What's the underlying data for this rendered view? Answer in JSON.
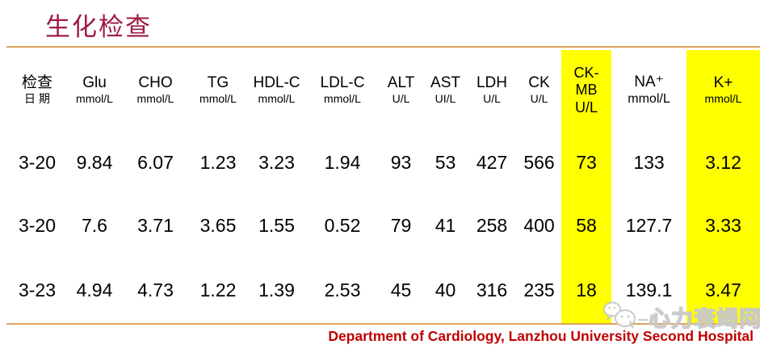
{
  "slide": {
    "title": "生化检查",
    "accent_colors": {
      "title": "#9E1B42",
      "divider": "#DEA35C",
      "highlight": "#FFFF00",
      "footer_text": "#C00000",
      "watermark": "#C9C9C9"
    }
  },
  "table": {
    "columns": [
      {
        "id": "date",
        "line1": "检查",
        "line2": "日 期",
        "highlight": false
      },
      {
        "id": "glu",
        "line1": "Glu",
        "line2": "mmol/L",
        "highlight": false
      },
      {
        "id": "cho",
        "line1": "CHO",
        "line2": "mmol/L",
        "highlight": false,
        "bold": true
      },
      {
        "id": "tg",
        "line1": "TG",
        "line2": "mmol/L",
        "highlight": false
      },
      {
        "id": "hdlc",
        "line1": "HDL-C",
        "line2": "mmol/L",
        "highlight": false
      },
      {
        "id": "ldlc",
        "line1": "LDL-C",
        "line2": "mmol/L",
        "highlight": false,
        "bold": true
      },
      {
        "id": "alt",
        "line1": "ALT",
        "line2": "U/L",
        "highlight": false
      },
      {
        "id": "ast",
        "line1": "AST",
        "line2": "UI/L",
        "highlight": false
      },
      {
        "id": "ldh",
        "line1": "LDH",
        "line2": "U/L",
        "highlight": false
      },
      {
        "id": "ck",
        "line1": "CK",
        "line2": "U/L",
        "highlight": false
      },
      {
        "id": "ckmb",
        "line1": "CK-",
        "line2": "MB",
        "line3": "U/L",
        "highlight": true,
        "uniform": true
      },
      {
        "id": "na",
        "line1": "NA⁺",
        "line2": "mmol/L",
        "highlight": false,
        "subLarge": true
      },
      {
        "id": "k",
        "line1": "K+",
        "line2": "mmol/L",
        "highlight": true,
        "shift": true
      }
    ],
    "rows": [
      [
        "3-20",
        "9.84",
        "6.07",
        "1.23",
        "3.23",
        "1.94",
        "93",
        "53",
        "427",
        "566",
        "73",
        "133",
        "3.12"
      ],
      [
        "3-20",
        "7.6",
        "3.71",
        "3.65",
        "1.55",
        "0.52",
        "79",
        "41",
        "258",
        "400",
        "58",
        "127.7",
        "3.33"
      ],
      [
        "3-23",
        "4.94",
        "4.73",
        "1.22",
        "1.39",
        "2.53",
        "45",
        "40",
        "316",
        "235",
        "18",
        "139.1",
        "3.47"
      ]
    ]
  },
  "watermark": {
    "text": "心力衰竭网",
    "icon": "chat-bubbles-icon"
  },
  "footer": {
    "text": "Department of Cardiology, Lanzhou University Second Hospital"
  }
}
